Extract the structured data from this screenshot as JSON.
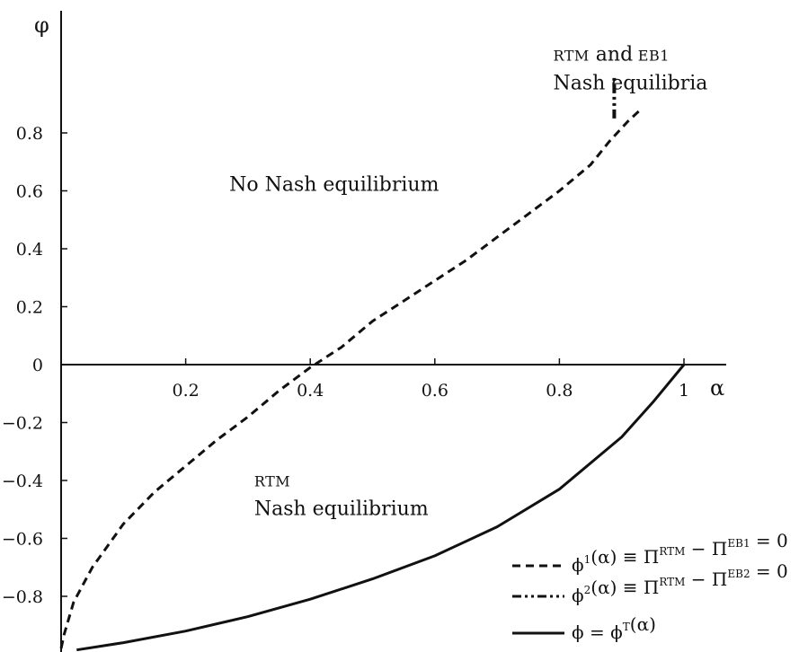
{
  "chart_data": {
    "type": "line",
    "xlabel": "α",
    "ylabel": "φ",
    "xlim": [
      0,
      1.07
    ],
    "ylim": [
      -0.98,
      1.18
    ],
    "x_ticks": [
      0.2,
      0.4,
      0.6,
      0.8,
      1
    ],
    "x_tick_labels": [
      "0.2",
      "0.4",
      "0.6",
      "0.8",
      "1"
    ],
    "y_ticks": [
      0.8,
      0.6,
      0.4,
      0.2,
      0,
      -0.2,
      -0.4,
      -0.6,
      -0.8
    ],
    "y_tick_labels": [
      "0.8",
      "0.6",
      "0.4",
      "0.2",
      "0",
      "−0.2",
      "−0.4",
      "−0.6",
      "−0.8"
    ],
    "grid": false,
    "legend_position": "bottom-right",
    "series": [
      {
        "style": "dashed",
        "x": [
          0.0,
          0.005,
          0.02,
          0.05,
          0.1,
          0.15,
          0.2,
          0.25,
          0.3,
          0.35,
          0.4,
          0.45,
          0.5,
          0.55,
          0.6,
          0.65,
          0.7,
          0.75,
          0.8,
          0.85,
          0.88,
          0.91,
          0.93
        ],
        "y": [
          -0.98,
          -0.93,
          -0.82,
          -0.7,
          -0.55,
          -0.44,
          -0.35,
          -0.26,
          -0.18,
          -0.09,
          -0.01,
          0.06,
          0.15,
          0.22,
          0.29,
          0.36,
          0.44,
          0.52,
          0.6,
          0.69,
          0.77,
          0.84,
          0.88
        ]
      },
      {
        "style": "dash-dot-dot",
        "x": [
          0.888,
          0.888
        ],
        "y": [
          0.85,
          0.99
        ]
      },
      {
        "style": "solid",
        "x": [
          0.025,
          0.1,
          0.2,
          0.3,
          0.4,
          0.5,
          0.6,
          0.7,
          0.8,
          0.9,
          0.95,
          1.0
        ],
        "y": [
          -0.985,
          -0.96,
          -0.92,
          -0.87,
          -0.81,
          -0.74,
          -0.66,
          -0.56,
          -0.43,
          -0.25,
          -0.13,
          0.0
        ]
      }
    ],
    "annotations": [
      {
        "lines": [
          "No Nash equilibrium"
        ],
        "x": 0.27,
        "y": 0.6
      },
      {
        "lines": [
          "RTM and EB1",
          "Nash equilibria"
        ],
        "x": 0.79,
        "y": 1.05
      },
      {
        "lines": [
          "RTM",
          "Nash equilibrium"
        ],
        "x": 0.31,
        "y": -0.42
      }
    ],
    "legend": [
      {
        "style": "dashed",
        "lhs": "ϕ",
        "sup": "1",
        "mid": "(α) ≡ Π",
        "sup2": "RTM",
        "mid2": " − Π",
        "sup3": "EB1",
        "rhs": " = 0"
      },
      {
        "style": "dash-dot-dot",
        "lhs": "ϕ",
        "sup": "2",
        "mid": "(α) ≡ Π",
        "sup2": "RTM",
        "mid2": " − Π",
        "sup3": "EB2",
        "rhs": " = 0"
      },
      {
        "style": "solid",
        "lhs": "ϕ = ϕ",
        "sup": "T",
        "mid": "(α)",
        "sup2": "",
        "mid2": "",
        "sup3": "",
        "rhs": ""
      }
    ]
  }
}
